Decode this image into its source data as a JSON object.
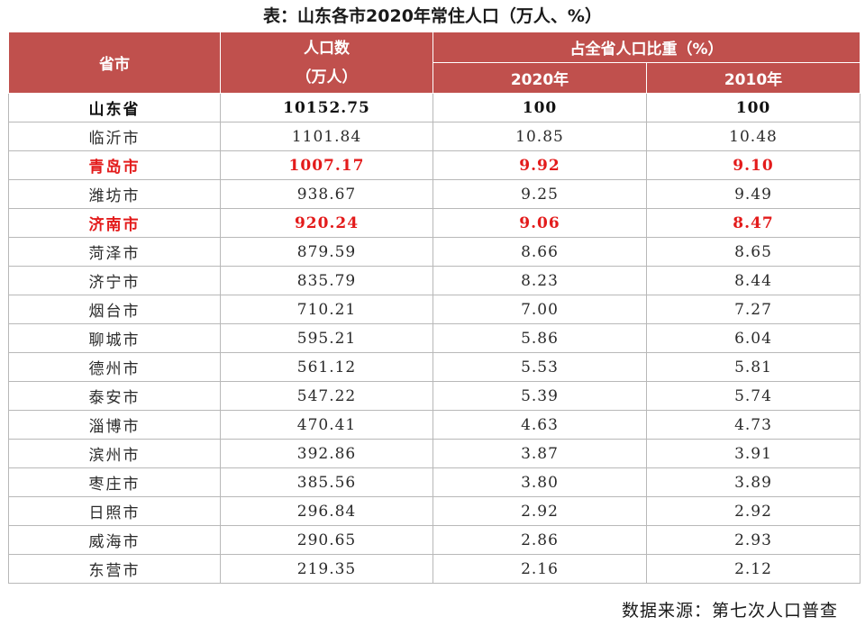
{
  "title": "表：山东各市2020年常住人口（万人、%）",
  "header": {
    "col_province": "省市",
    "col_population_line1": "人口数",
    "col_population_line2": "（万人）",
    "col_share_group": "占全省人口比重（%）",
    "col_2020": "2020年",
    "col_2010": "2010年"
  },
  "rows": [
    {
      "name": "山东省",
      "population": "10152.75",
      "share_2020": "100",
      "share_2010": "100"
    },
    {
      "name": "临沂市",
      "population": "1101.84",
      "share_2020": "10.85",
      "share_2010": "10.48"
    },
    {
      "name": "青岛市",
      "population": "1007.17",
      "share_2020": "9.92",
      "share_2010": "9.10"
    },
    {
      "name": "潍坊市",
      "population": "938.67",
      "share_2020": "9.25",
      "share_2010": "9.49"
    },
    {
      "name": "济南市",
      "population": "920.24",
      "share_2020": "9.06",
      "share_2010": "8.47"
    },
    {
      "name": "菏泽市",
      "population": "879.59",
      "share_2020": "8.66",
      "share_2010": "8.65"
    },
    {
      "name": "济宁市",
      "population": "835.79",
      "share_2020": "8.23",
      "share_2010": "8.44"
    },
    {
      "name": "烟台市",
      "population": "710.21",
      "share_2020": "7.00",
      "share_2010": "7.27"
    },
    {
      "name": "聊城市",
      "population": "595.21",
      "share_2020": "5.86",
      "share_2010": "6.04"
    },
    {
      "name": "德州市",
      "population": "561.12",
      "share_2020": "5.53",
      "share_2010": "5.81"
    },
    {
      "name": "泰安市",
      "population": "547.22",
      "share_2020": "5.39",
      "share_2010": "5.74"
    },
    {
      "name": "淄博市",
      "population": "470.41",
      "share_2020": "4.63",
      "share_2010": "4.73"
    },
    {
      "name": "滨州市",
      "population": "392.86",
      "share_2020": "3.87",
      "share_2010": "3.91"
    },
    {
      "name": "枣庄市",
      "population": "385.56",
      "share_2020": "3.80",
      "share_2010": "3.89"
    },
    {
      "name": "日照市",
      "population": "296.84",
      "share_2020": "2.92",
      "share_2010": "2.92"
    },
    {
      "name": "威海市",
      "population": "290.65",
      "share_2020": "2.86",
      "share_2010": "2.93"
    },
    {
      "name": "东营市",
      "population": "219.35",
      "share_2020": "2.16",
      "share_2010": "2.12"
    }
  ],
  "source": "数据来源：第七次人口普查",
  "colors": {
    "header_bg": "#c0504d",
    "header_text": "#ffffff",
    "highlight_text": "#e31b1b",
    "border": "#b8b8b8"
  }
}
